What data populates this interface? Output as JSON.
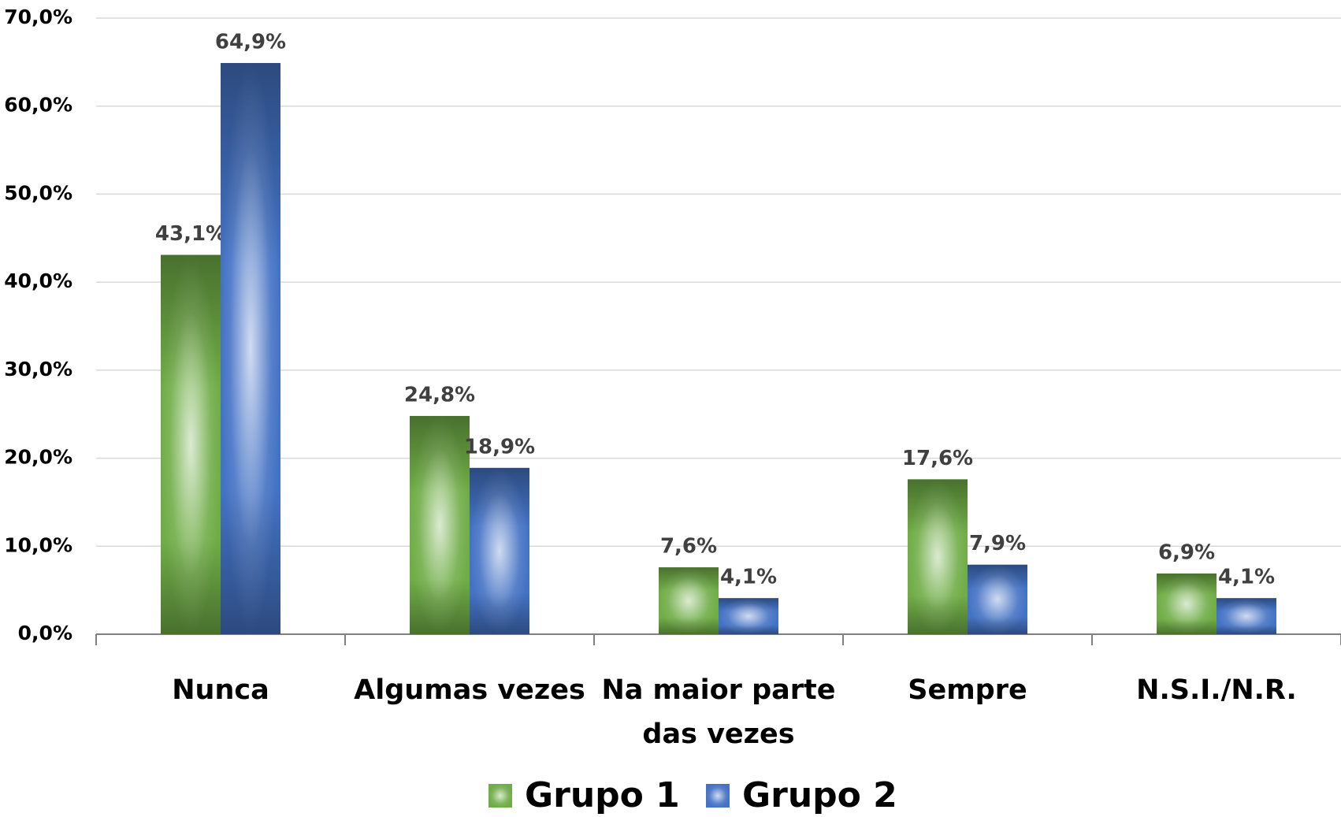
{
  "chart_data": {
    "type": "bar",
    "categories": [
      "Nunca",
      "Algumas vezes",
      "Na maior parte das vezes",
      "Sempre",
      "N.S.I./N.R."
    ],
    "series": [
      {
        "name": "Grupo 1",
        "color": "#70ad47",
        "values": [
          43.1,
          24.8,
          7.6,
          17.6,
          6.9
        ],
        "value_labels": [
          "43,1%",
          "24,8%",
          "7,6%",
          "17,6%",
          "6,9%"
        ]
      },
      {
        "name": "Grupo 2",
        "color": "#4472c4",
        "values": [
          64.9,
          18.9,
          4.1,
          7.9,
          4.1
        ],
        "value_labels": [
          "64,9%",
          "18,9%",
          "4,1%",
          "7,9%",
          "4,1%"
        ]
      }
    ],
    "ylim": [
      0,
      70
    ],
    "yticks": [
      {
        "value": 0,
        "label": "0,0%"
      },
      {
        "value": 10,
        "label": "10,0%"
      },
      {
        "value": 20,
        "label": "20,0%"
      },
      {
        "value": 30,
        "label": "30,0%"
      },
      {
        "value": 40,
        "label": "40,0%"
      },
      {
        "value": 50,
        "label": "50,0%"
      },
      {
        "value": 60,
        "label": "60,0%"
      },
      {
        "value": 70,
        "label": "70,0%"
      }
    ],
    "grid": true,
    "legend": "bottom"
  }
}
